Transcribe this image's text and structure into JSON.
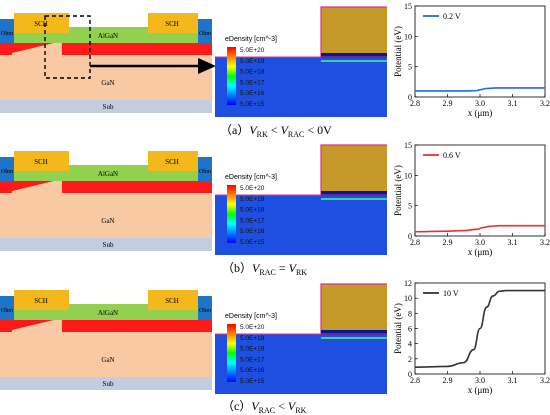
{
  "device": {
    "sch": "SCH",
    "ohm": "Ohm",
    "algan": "AlGaN",
    "gan": "GaN",
    "sub": "Sub"
  },
  "colors": {
    "sch": "#f5b81a",
    "ohm": "#1d74c9",
    "algan": "#92d050",
    "red": "#ff1a1a",
    "gan": "#f8c9a3",
    "sub": "#c3cde0",
    "metal": "#c69a2a",
    "blue_region": "#1f4fe0",
    "dark_blue": "#001a9c",
    "magenta": "#e0308a",
    "green_line": "#3ad0a0"
  },
  "colorbar": {
    "title": "eDensity [cm^-3]",
    "labels": [
      "5.0E+20",
      "5.0E+19",
      "5.0E+18",
      "5.0E+17",
      "5.0E+16",
      "5.0E+15"
    ],
    "colors": [
      "#ff0000",
      "#ff8000",
      "#ffff00",
      "#00ff00",
      "#00ffff",
      "#0080ff",
      "#0000ff"
    ]
  },
  "panels": [
    {
      "caption_prefix": "（a）",
      "caption_expr": "V_RK < V_RAC < 0V",
      "caption_parts": [
        "（a）",
        "V",
        "RK",
        " < ",
        "V",
        "RAC",
        " < 0V"
      ],
      "chart_label": "0.2 V",
      "line_color": "#1f6fcf"
    },
    {
      "caption_parts": [
        "（b）",
        "V",
        "RAC",
        " = ",
        "V",
        "RK",
        "",
        "",
        ""
      ],
      "chart_label": "0.6 V",
      "line_color": "#e83030"
    },
    {
      "caption_parts": [
        "（c）",
        "V",
        "RAC",
        " < ",
        "V",
        "RK",
        ""
      ],
      "chart_label": "10 V",
      "line_color": "#333333"
    }
  ],
  "chart_data": [
    {
      "type": "line",
      "xlabel": "x (μm)",
      "ylabel": "Potential (eV)",
      "xlim": [
        2.8,
        3.2
      ],
      "ylim": [
        0,
        15
      ],
      "xticks": [
        "2.8",
        "2.9",
        "3.0",
        "3.1",
        "3.2"
      ],
      "yticks": [
        "0",
        "5",
        "10",
        "15"
      ],
      "series": [
        {
          "name": "0.2 V",
          "x": [
            2.8,
            2.95,
            2.99,
            3.0,
            3.02,
            3.05,
            3.2
          ],
          "y": [
            1.0,
            1.0,
            1.05,
            1.2,
            1.4,
            1.5,
            1.5
          ]
        }
      ]
    },
    {
      "type": "line",
      "xlabel": "x (μm)",
      "ylabel": "Potential (eV)",
      "xlim": [
        2.8,
        3.2
      ],
      "ylim": [
        0,
        15
      ],
      "xticks": [
        "2.8",
        "2.9",
        "3.0",
        "3.1",
        "3.2"
      ],
      "yticks": [
        "0",
        "5",
        "10",
        "15"
      ],
      "series": [
        {
          "name": "0.6 V",
          "x": [
            2.8,
            2.9,
            2.95,
            2.99,
            3.01,
            3.03,
            3.06,
            3.2
          ],
          "y": [
            0.7,
            0.8,
            0.9,
            1.1,
            1.4,
            1.6,
            1.7,
            1.7
          ]
        }
      ]
    },
    {
      "type": "line",
      "xlabel": "x (μm)",
      "ylabel": "Potential (eV)",
      "xlim": [
        2.8,
        3.2
      ],
      "ylim": [
        0,
        12
      ],
      "xticks": [
        "2.8",
        "2.9",
        "3.0",
        "3.1",
        "3.2"
      ],
      "yticks": [
        "0",
        "2",
        "4",
        "6",
        "8",
        "10",
        "12"
      ],
      "series": [
        {
          "name": "10 V",
          "x": [
            2.8,
            2.9,
            2.95,
            2.98,
            3.0,
            3.02,
            3.04,
            3.06,
            3.08,
            3.2
          ],
          "y": [
            0.9,
            1.0,
            1.5,
            3.2,
            6.0,
            8.8,
            10.3,
            10.9,
            11.0,
            11.0
          ]
        }
      ]
    }
  ]
}
